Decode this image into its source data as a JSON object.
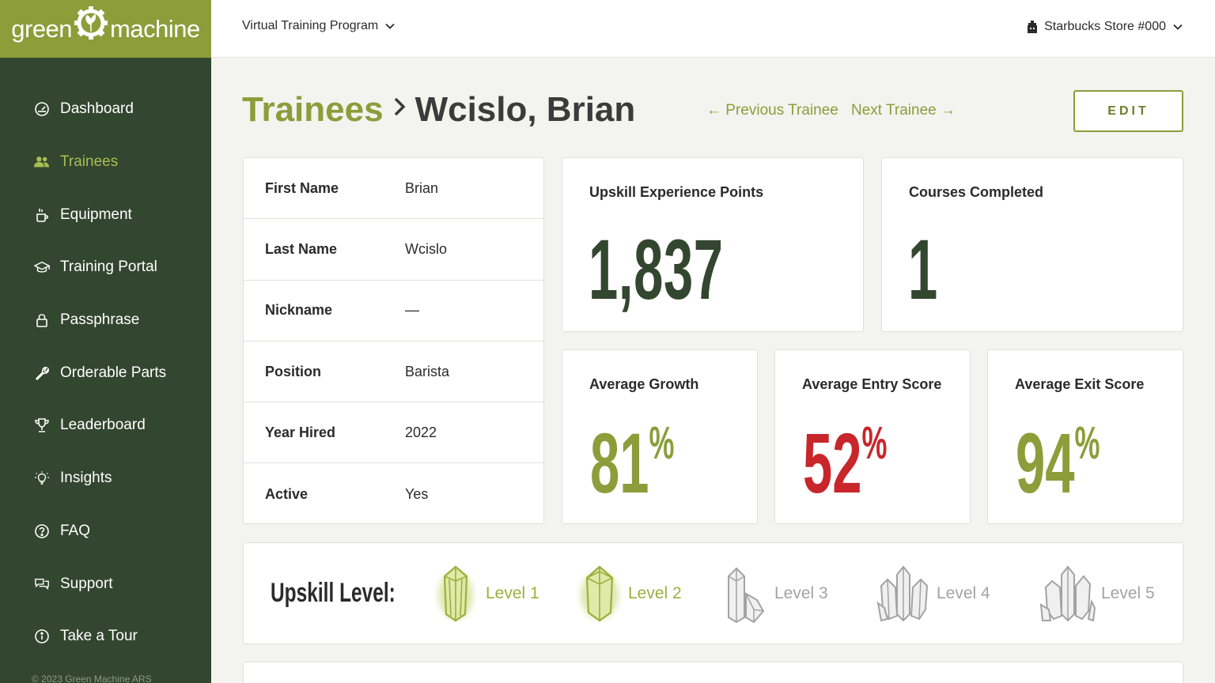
{
  "logo": {
    "left": "green",
    "right": "machine"
  },
  "sidebar": {
    "items": [
      {
        "label": "Dashboard",
        "icon": "dashboard-icon"
      },
      {
        "label": "Trainees",
        "icon": "users-icon",
        "active": true
      },
      {
        "label": "Equipment",
        "icon": "coffee-machine-icon"
      },
      {
        "label": "Training Portal",
        "icon": "graduation-cap-icon"
      },
      {
        "label": "Passphrase",
        "icon": "lock-icon"
      },
      {
        "label": "Orderable Parts",
        "icon": "wrench-icon"
      },
      {
        "label": "Leaderboard",
        "icon": "trophy-icon"
      },
      {
        "label": "Insights",
        "icon": "lightbulb-icon"
      },
      {
        "label": "FAQ",
        "icon": "question-icon"
      },
      {
        "label": "Support",
        "icon": "chat-icon"
      },
      {
        "label": "Take a Tour",
        "icon": "info-icon"
      }
    ],
    "copyright": "© 2023 Green Machine ARS"
  },
  "topbar": {
    "program": "Virtual Training Program",
    "store": "Starbucks Store #000"
  },
  "header": {
    "breadcrumb_parent": "Trainees",
    "trainee_name": "Wcislo, Brian",
    "prev_label": "← Previous Trainee",
    "next_label": "Next Trainee →",
    "edit_label": "EDIT"
  },
  "profile": {
    "rows": [
      {
        "label": "First Name",
        "value": "Brian"
      },
      {
        "label": "Last Name",
        "value": "Wcislo"
      },
      {
        "label": "Nickname",
        "value": "—"
      },
      {
        "label": "Position",
        "value": "Barista"
      },
      {
        "label": "Year Hired",
        "value": "2022"
      },
      {
        "label": "Active",
        "value": "Yes"
      }
    ]
  },
  "stats": {
    "xp": {
      "title": "Upskill Experience Points",
      "value": "1,837"
    },
    "courses": {
      "title": "Courses Completed",
      "value": "1"
    },
    "growth": {
      "title": "Average Growth",
      "value": "81",
      "unit": "%",
      "color": "#8c9d3a"
    },
    "entry": {
      "title": "Average Entry Score",
      "value": "52",
      "unit": "%",
      "color": "#c8262b"
    },
    "exit": {
      "title": "Average Exit Score",
      "value": "94",
      "unit": "%",
      "color": "#8c9d3a"
    }
  },
  "upskill": {
    "title": "Upskill Level:",
    "levels": [
      {
        "label": "Level 1",
        "achieved": true
      },
      {
        "label": "Level 2",
        "achieved": true
      },
      {
        "label": "Level 3",
        "achieved": false
      },
      {
        "label": "Level 4",
        "achieved": false
      },
      {
        "label": "Level 5",
        "achieved": false
      }
    ]
  },
  "colors": {
    "brand": "#8c9d3a",
    "sidebar": "#33462f",
    "accent_red": "#c8262b"
  }
}
